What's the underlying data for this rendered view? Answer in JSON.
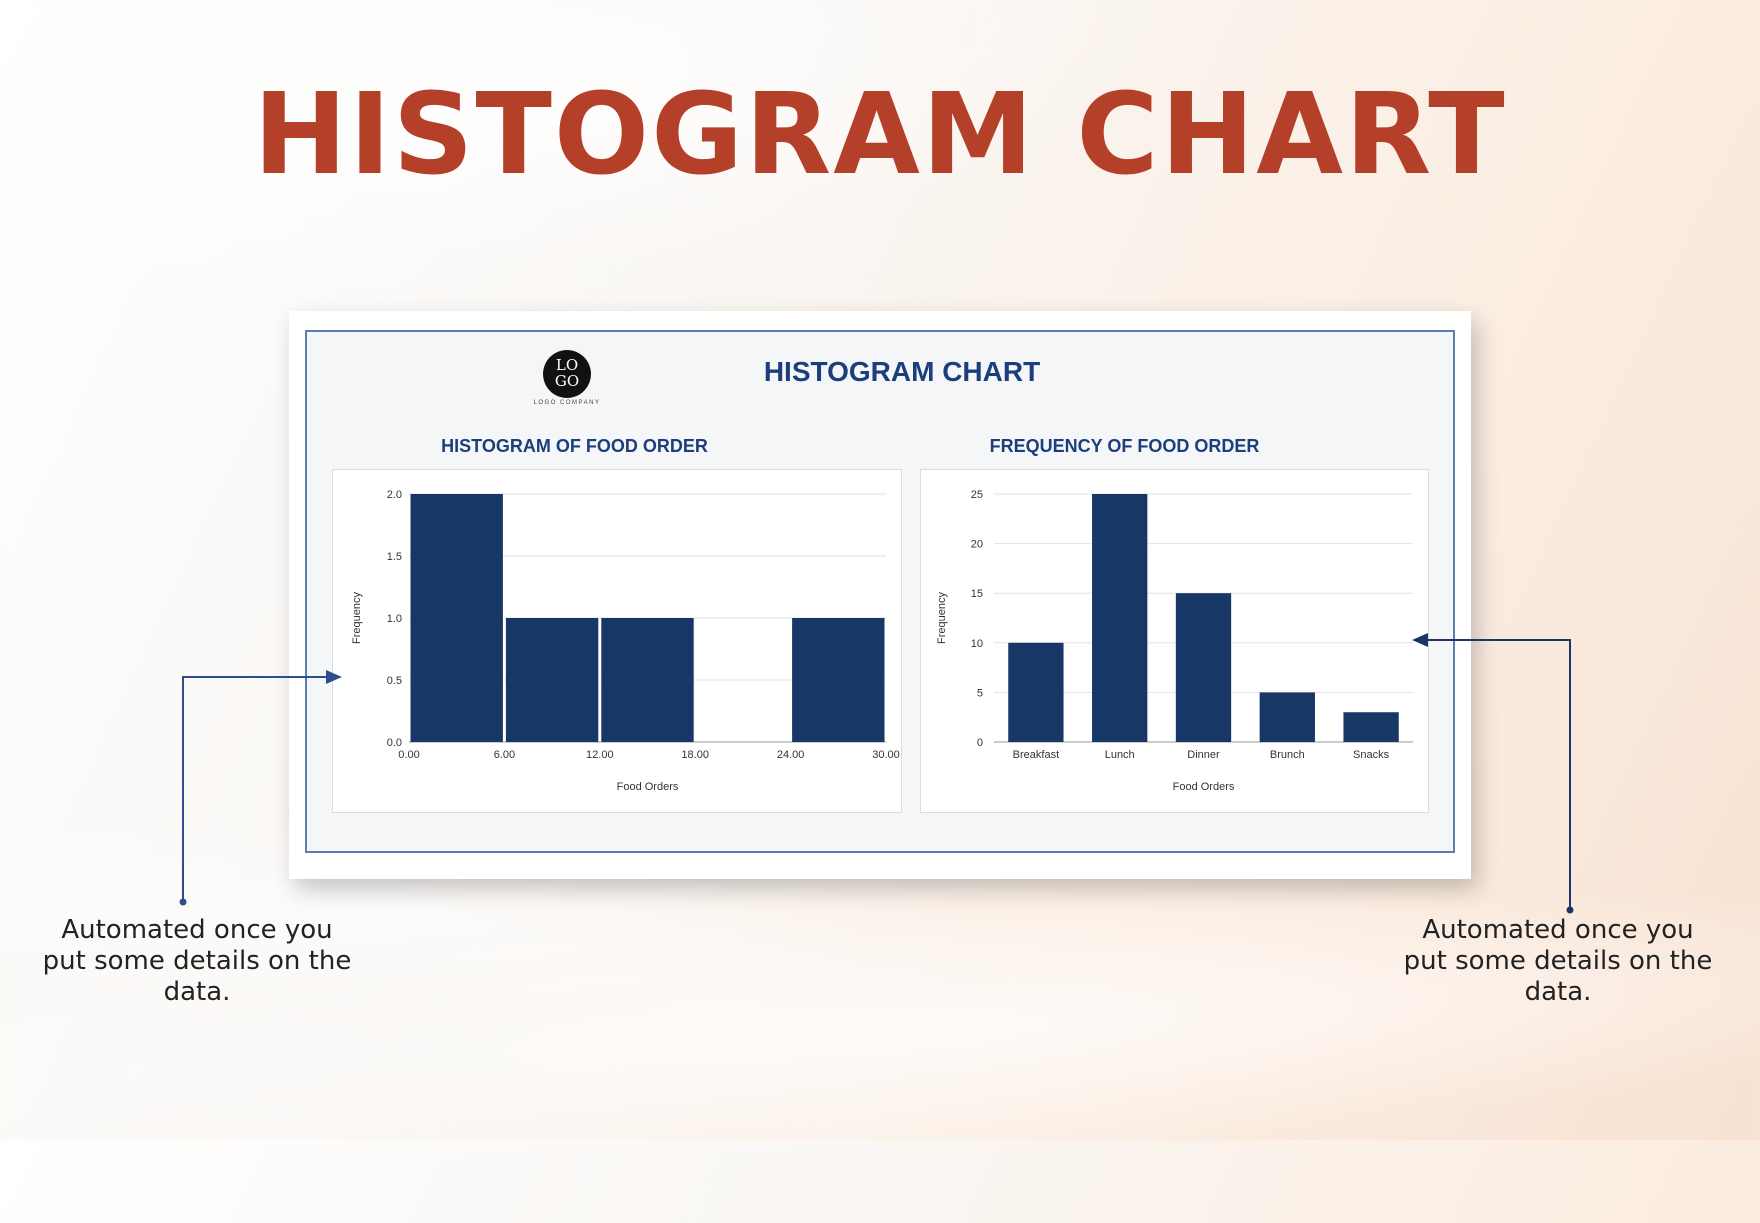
{
  "page": {
    "title": "HISTOGRAM CHART"
  },
  "card": {
    "title": "HISTOGRAM CHART",
    "logo_text": "LO GO",
    "logo_sub": "LOGO COMPANY"
  },
  "callouts": {
    "left": "Automated once you put some details on the data.",
    "right": "Automated once you put some details on the data."
  },
  "colors": {
    "bar": "#173766",
    "title": "#b4402a",
    "heading": "#1c3f7c"
  },
  "chart_data": [
    {
      "type": "bar",
      "title": "HISTOGRAM OF FOOD ORDER",
      "xlabel": "Food Orders",
      "ylabel": "Frequency",
      "bins": [
        {
          "from": 0,
          "to": 6,
          "value": 2
        },
        {
          "from": 6,
          "to": 12,
          "value": 1
        },
        {
          "from": 12,
          "to": 18,
          "value": 1
        },
        {
          "from": 18,
          "to": 24,
          "value": 0
        },
        {
          "from": 24,
          "to": 30,
          "value": 1
        }
      ],
      "xticks": [
        "0.00",
        "6.00",
        "12.00",
        "18.00",
        "24.00",
        "30.00"
      ],
      "yticks": [
        "0.0",
        "0.5",
        "1.0",
        "1.5",
        "2.0"
      ],
      "xlim": [
        0,
        30
      ],
      "ylim": [
        0,
        2
      ],
      "grid": true
    },
    {
      "type": "bar",
      "title": "FREQUENCY OF FOOD ORDER",
      "xlabel": "Food Orders",
      "ylabel": "Frequency",
      "categories": [
        "Breakfast",
        "Lunch",
        "Dinner",
        "Brunch",
        "Snacks"
      ],
      "values": [
        10,
        25,
        15,
        5,
        3
      ],
      "yticks": [
        "0",
        "5",
        "10",
        "15",
        "20",
        "25"
      ],
      "ylim": [
        0,
        25
      ],
      "grid": true
    }
  ]
}
